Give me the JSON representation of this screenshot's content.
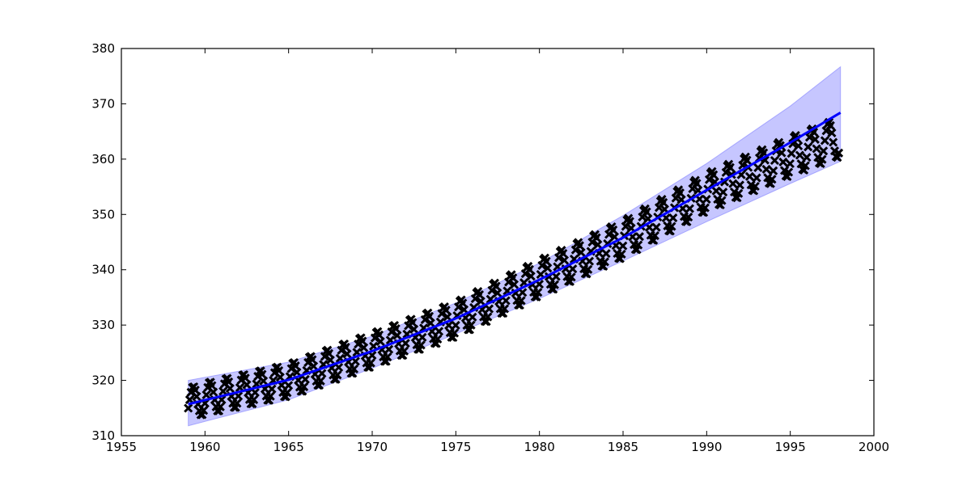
{
  "chart_data": {
    "type": "scatter",
    "title": "",
    "xlabel": "",
    "ylabel": "",
    "xlim": [
      1955,
      2000
    ],
    "ylim": [
      310,
      380
    ],
    "xticks": [
      "1955",
      "1960",
      "1965",
      "1970",
      "1975",
      "1980",
      "1985",
      "1990",
      "1995",
      "2000"
    ],
    "yticks": [
      "310",
      "320",
      "330",
      "340",
      "350",
      "360",
      "370",
      "380"
    ],
    "grid": false,
    "legend": "none",
    "colors": {
      "observations": "#000000",
      "fit_line": "#0000ff",
      "band_fill": "#8080ff",
      "axes": "#000000"
    },
    "series": [
      {
        "kind": "observations",
        "marker": "x",
        "x_start": 1959.0,
        "x_end": 1997.92,
        "x_step": 0.0833,
        "trend": [
          {
            "x": 1959,
            "y": 315.8
          },
          {
            "x": 1960,
            "y": 316.7
          },
          {
            "x": 1965,
            "y": 320.0
          },
          {
            "x": 1970,
            "y": 325.5
          },
          {
            "x": 1975,
            "y": 331.0
          },
          {
            "x": 1980,
            "y": 338.5
          },
          {
            "x": 1985,
            "y": 345.5
          },
          {
            "x": 1990,
            "y": 354.0
          },
          {
            "x": 1995,
            "y": 360.5
          },
          {
            "x": 1998,
            "y": 364.0
          }
        ],
        "seasonal_amplitude": [
          {
            "x": 1959,
            "y": 2.8
          },
          {
            "x": 1980,
            "y": 3.2
          },
          {
            "x": 1998,
            "y": 3.5
          }
        ]
      },
      {
        "kind": "fit",
        "style": "line",
        "points": [
          {
            "x": 1959,
            "y": 315.7
          },
          {
            "x": 1965,
            "y": 320.1
          },
          {
            "x": 1970,
            "y": 325.3
          },
          {
            "x": 1975,
            "y": 331.2
          },
          {
            "x": 1980,
            "y": 338.2
          },
          {
            "x": 1985,
            "y": 345.8
          },
          {
            "x": 1990,
            "y": 354.4
          },
          {
            "x": 1995,
            "y": 363.0
          },
          {
            "x": 1998,
            "y": 368.4
          }
        ]
      },
      {
        "kind": "confidence_band",
        "style": "area",
        "upper": [
          {
            "x": 1959,
            "y": 320.0
          },
          {
            "x": 1965,
            "y": 323.3
          },
          {
            "x": 1970,
            "y": 328.0
          },
          {
            "x": 1975,
            "y": 334.0
          },
          {
            "x": 1980,
            "y": 341.2
          },
          {
            "x": 1985,
            "y": 349.8
          },
          {
            "x": 1990,
            "y": 359.2
          },
          {
            "x": 1995,
            "y": 369.6
          },
          {
            "x": 1998,
            "y": 376.7
          }
        ],
        "lower": [
          {
            "x": 1959,
            "y": 311.8
          },
          {
            "x": 1965,
            "y": 316.5
          },
          {
            "x": 1970,
            "y": 322.2
          },
          {
            "x": 1975,
            "y": 328.4
          },
          {
            "x": 1980,
            "y": 334.8
          },
          {
            "x": 1985,
            "y": 341.6
          },
          {
            "x": 1990,
            "y": 348.7
          },
          {
            "x": 1995,
            "y": 355.6
          },
          {
            "x": 1998,
            "y": 359.6
          }
        ]
      }
    ]
  }
}
